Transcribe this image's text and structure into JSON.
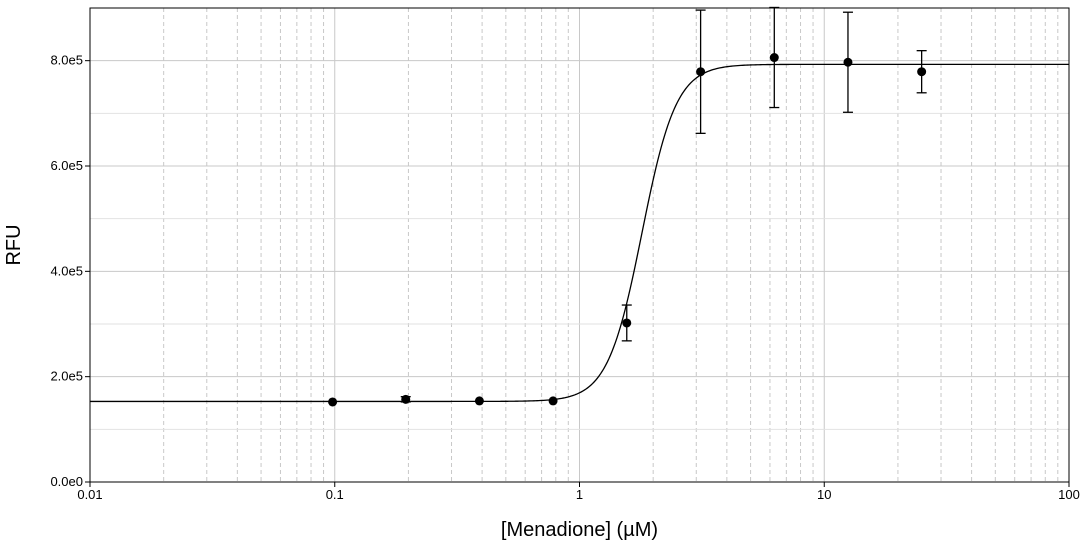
{
  "chart_data": {
    "type": "scatter",
    "title": "",
    "xlabel": "[Menadione] (µM)",
    "ylabel": "RFU",
    "xscale": "log",
    "xlim": [
      0.01,
      100
    ],
    "ylim": [
      0,
      900000
    ],
    "grid": true,
    "legend": "none",
    "x_ticks": [
      {
        "value": 0.01,
        "label": "0.01"
      },
      {
        "value": 0.1,
        "label": "0.1"
      },
      {
        "value": 1,
        "label": "1"
      },
      {
        "value": 10,
        "label": "10"
      },
      {
        "value": 100,
        "label": "100"
      }
    ],
    "y_ticks": [
      {
        "value": 0,
        "label": "0.0e0"
      },
      {
        "value": 200000,
        "label": "2.0e5"
      },
      {
        "value": 400000,
        "label": "4.0e5"
      },
      {
        "value": 600000,
        "label": "6.0e5"
      },
      {
        "value": 800000,
        "label": "8.0e5"
      }
    ],
    "points": [
      {
        "x": 0.098,
        "y": 152000,
        "err": 0
      },
      {
        "x": 0.195,
        "y": 157000,
        "err": 5000
      },
      {
        "x": 0.39,
        "y": 154000,
        "err": 0
      },
      {
        "x": 0.78,
        "y": 154000,
        "err": 0
      },
      {
        "x": 1.56,
        "y": 302000,
        "err": 34000
      },
      {
        "x": 3.125,
        "y": 779000,
        "err": 117000
      },
      {
        "x": 6.25,
        "y": 806000,
        "err": 95000
      },
      {
        "x": 12.5,
        "y": 797000,
        "err": 95000
      },
      {
        "x": 25,
        "y": 779000,
        "err": 40000
      }
    ],
    "fit": {
      "model": "4PL",
      "bottom": 153000,
      "top": 793000,
      "ec50": 1.8,
      "hill": 6.2
    },
    "colors": {
      "points": "#000000",
      "curve": "#000000",
      "grid": "#c8c8c8",
      "axis": "#000000"
    }
  }
}
